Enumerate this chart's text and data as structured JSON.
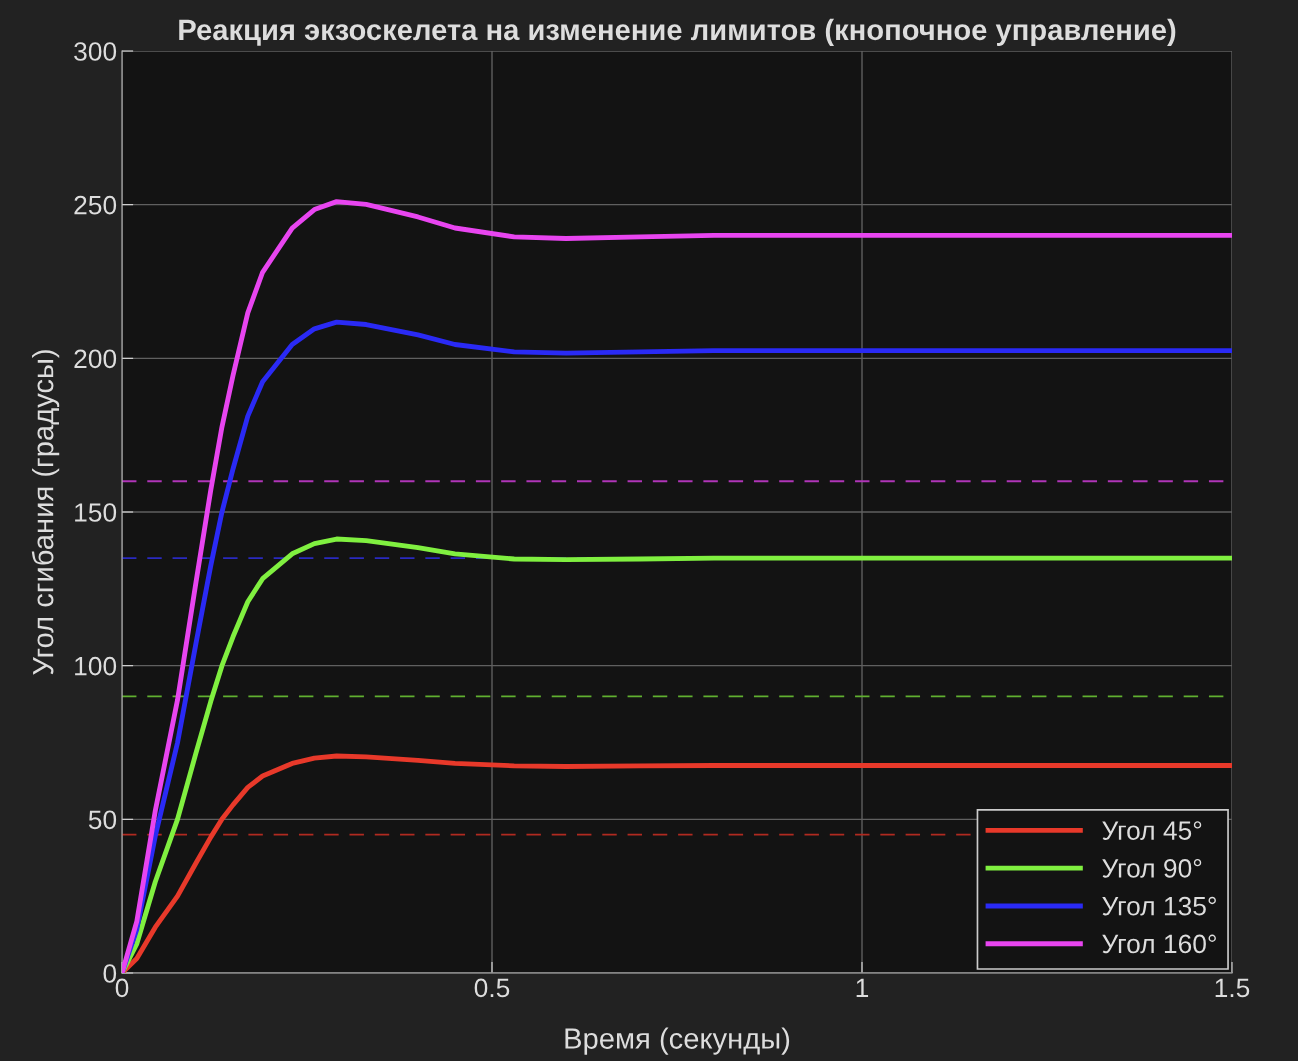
{
  "chart_data": {
    "type": "line",
    "title": "Реакция экзоскелета на изменение лимитов (кнопочное управление)",
    "xlabel": "Время (секунды)",
    "ylabel": "Угол сгибания (градусы)",
    "x": [
      0,
      0.02,
      0.045,
      0.075,
      0.1,
      0.12,
      0.135,
      0.15,
      0.17,
      0.19,
      0.23,
      0.26,
      0.29,
      0.33,
      0.4,
      0.45,
      0.53,
      0.6,
      0.7,
      0.8,
      1.0,
      1.5
    ],
    "series": [
      {
        "name": "Угол 45°",
        "color": "#e8392a",
        "values": [
          0,
          4.7,
          14.9,
          25,
          35.8,
          44.2,
          50,
          54.7,
          60.4,
          64.1,
          68.2,
          69.9,
          70.6,
          70.3,
          69.2,
          68.2,
          67.4,
          67.2,
          67.4,
          67.5,
          67.5,
          67.5
        ]
      },
      {
        "name": "Угол 90°",
        "color": "#80f040",
        "values": [
          0,
          9.5,
          29.7,
          50,
          71.6,
          88.4,
          99.9,
          109.4,
          120.8,
          128.3,
          136.4,
          139.7,
          141.2,
          140.7,
          138.4,
          136.4,
          134.7,
          134.5,
          134.7,
          135,
          135,
          135
        ]
      },
      {
        "name": "Угол 135°",
        "color": "#2a2af5",
        "values": [
          0,
          14.2,
          44.6,
          74.9,
          107.3,
          132.6,
          149.9,
          164,
          181.2,
          192.4,
          204.5,
          209.6,
          211.8,
          211,
          207.6,
          204.5,
          202.1,
          201.7,
          202.1,
          202.5,
          202.5,
          202.5
        ]
      },
      {
        "name": "Угол 160°",
        "color": "#e845f0",
        "values": [
          0,
          16.8,
          52.8,
          88.8,
          127.2,
          157.2,
          177.6,
          194.4,
          214.8,
          228,
          242.4,
          248.4,
          251,
          250.1,
          246,
          242.4,
          239.5,
          239,
          239.5,
          240,
          240,
          240
        ]
      }
    ],
    "ref_lines": [
      {
        "axis": "y",
        "value": 45,
        "color": "#b02a20",
        "line_style": "dashed"
      },
      {
        "axis": "y",
        "value": 90,
        "color": "#60b030",
        "line_style": "dashed"
      },
      {
        "axis": "y",
        "value": 135,
        "color": "#2a2ac0",
        "line_style": "dashed"
      },
      {
        "axis": "y",
        "value": 160,
        "color": "#b035b8",
        "line_style": "dashed"
      }
    ],
    "xlim": [
      0,
      1.5
    ],
    "ylim": [
      0,
      300
    ],
    "xticks": [
      0,
      0.5,
      1,
      1.5
    ],
    "yticks": [
      0,
      50,
      100,
      150,
      200,
      250,
      300
    ],
    "grid": true,
    "legend": "bottom right",
    "line_style": "solid",
    "marker": "none"
  }
}
